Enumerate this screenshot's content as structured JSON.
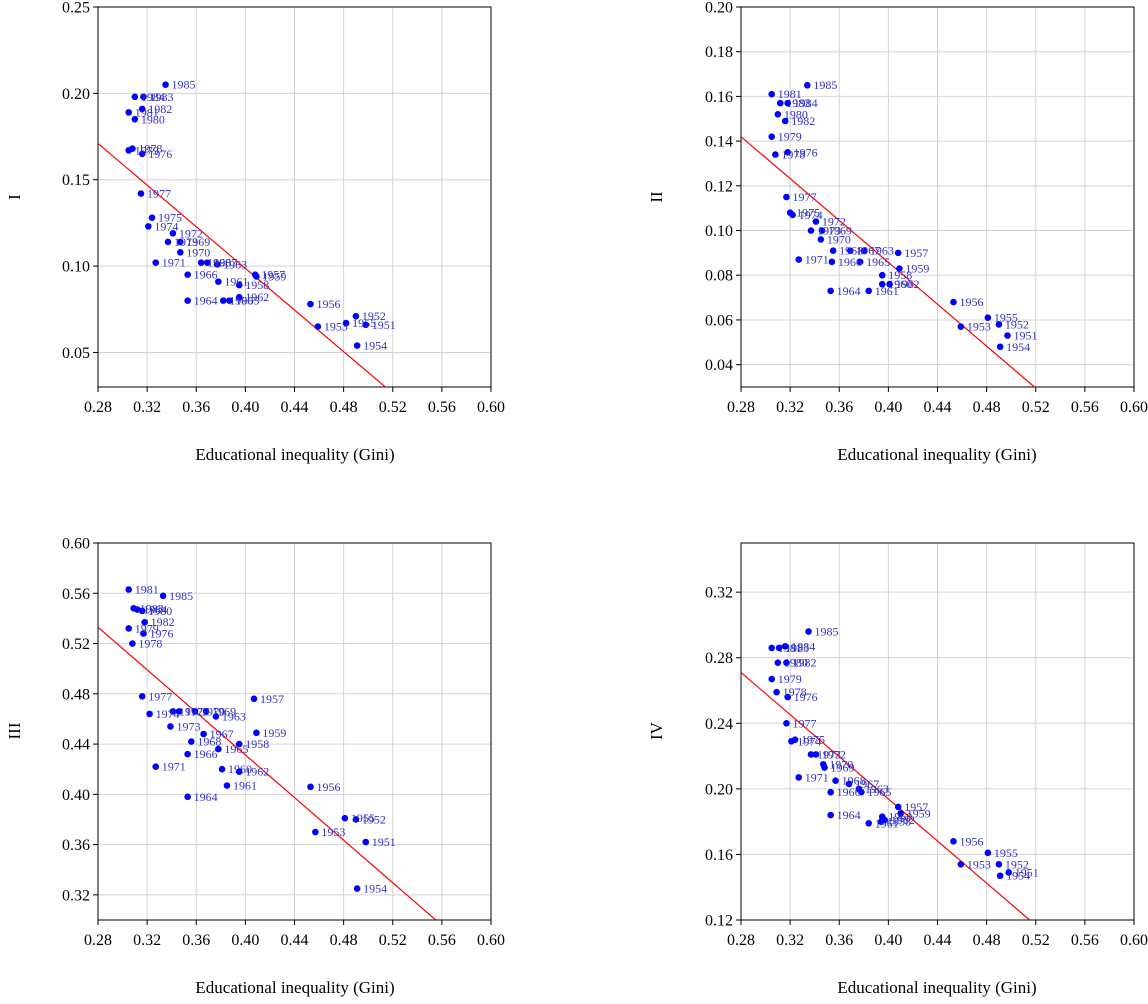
{
  "colors": {
    "points": "#0000ff",
    "labels": "#3232c8",
    "fit_line": "#ff0000",
    "grid": "#d3d3d3"
  },
  "chart_data": [
    {
      "type": "scatter",
      "ylabel": "I",
      "xlabel": "Educational inequality (Gini)",
      "xlim": [
        0.28,
        0.6
      ],
      "ylim": [
        0.03,
        0.25
      ],
      "xticks": [
        "0.28",
        "0.32",
        "0.36",
        "0.40",
        "0.44",
        "0.48",
        "0.52",
        "0.56",
        "0.60"
      ],
      "yticks": [
        "0.05",
        "0.10",
        "0.15",
        "0.20",
        "0.25"
      ],
      "fit_line": {
        "x": [
          0.28,
          0.514
        ],
        "y": [
          0.171,
          0.03
        ]
      },
      "points": [
        {
          "year": "1951",
          "x": 0.498,
          "y": 0.066
        },
        {
          "year": "1952",
          "x": 0.49,
          "y": 0.071
        },
        {
          "year": "1953",
          "x": 0.459,
          "y": 0.065
        },
        {
          "year": "1954",
          "x": 0.491,
          "y": 0.054
        },
        {
          "year": "1955",
          "x": 0.482,
          "y": 0.067
        },
        {
          "year": "1956",
          "x": 0.453,
          "y": 0.078
        },
        {
          "year": "1957",
          "x": 0.408,
          "y": 0.095
        },
        {
          "year": "1958",
          "x": 0.395,
          "y": 0.089
        },
        {
          "year": "1959",
          "x": 0.409,
          "y": 0.094
        },
        {
          "year": "1960",
          "x": 0.382,
          "y": 0.08
        },
        {
          "year": "1961",
          "x": 0.378,
          "y": 0.091
        },
        {
          "year": "1962",
          "x": 0.395,
          "y": 0.082
        },
        {
          "year": "1963",
          "x": 0.377,
          "y": 0.101
        },
        {
          "year": "1964",
          "x": 0.353,
          "y": 0.08
        },
        {
          "year": "1965",
          "x": 0.387,
          "y": 0.08
        },
        {
          "year": "1966",
          "x": 0.353,
          "y": 0.095
        },
        {
          "year": "1967",
          "x": 0.369,
          "y": 0.102
        },
        {
          "year": "1968",
          "x": 0.364,
          "y": 0.102
        },
        {
          "year": "1969",
          "x": 0.347,
          "y": 0.114
        },
        {
          "year": "1970",
          "x": 0.347,
          "y": 0.108
        },
        {
          "year": "1971",
          "x": 0.327,
          "y": 0.102
        },
        {
          "year": "1972",
          "x": 0.341,
          "y": 0.119
        },
        {
          "year": "1973",
          "x": 0.337,
          "y": 0.114
        },
        {
          "year": "1974",
          "x": 0.321,
          "y": 0.123
        },
        {
          "year": "1975",
          "x": 0.324,
          "y": 0.128
        },
        {
          "year": "1976",
          "x": 0.316,
          "y": 0.165
        },
        {
          "year": "1977",
          "x": 0.315,
          "y": 0.142
        },
        {
          "year": "1978",
          "x": 0.308,
          "y": 0.168
        },
        {
          "year": "1979",
          "x": 0.305,
          "y": 0.167
        },
        {
          "year": "1980",
          "x": 0.31,
          "y": 0.185
        },
        {
          "year": "1981",
          "x": 0.305,
          "y": 0.189
        },
        {
          "year": "1982",
          "x": 0.316,
          "y": 0.191
        },
        {
          "year": "1983",
          "x": 0.317,
          "y": 0.198
        },
        {
          "year": "1984",
          "x": 0.31,
          "y": 0.198
        },
        {
          "year": "1985",
          "x": 0.335,
          "y": 0.205
        }
      ]
    },
    {
      "type": "scatter",
      "ylabel": "II",
      "xlabel": "Educational inequality (Gini)",
      "xlim": [
        0.28,
        0.6
      ],
      "ylim": [
        0.03,
        0.2
      ],
      "xticks": [
        "0.28",
        "0.32",
        "0.36",
        "0.40",
        "0.44",
        "0.48",
        "0.52",
        "0.56",
        "0.60"
      ],
      "yticks": [
        "0.04",
        "0.06",
        "0.08",
        "0.10",
        "0.12",
        "0.14",
        "0.16",
        "0.18",
        "0.20"
      ],
      "fit_line": {
        "x": [
          0.28,
          0.519
        ],
        "y": [
          0.142,
          0.03
        ]
      },
      "points": [
        {
          "year": "1951",
          "x": 0.497,
          "y": 0.053
        },
        {
          "year": "1952",
          "x": 0.49,
          "y": 0.058
        },
        {
          "year": "1953",
          "x": 0.459,
          "y": 0.057
        },
        {
          "year": "1954",
          "x": 0.491,
          "y": 0.048
        },
        {
          "year": "1955",
          "x": 0.481,
          "y": 0.061
        },
        {
          "year": "1956",
          "x": 0.453,
          "y": 0.068
        },
        {
          "year": "1957",
          "x": 0.408,
          "y": 0.09
        },
        {
          "year": "1958",
          "x": 0.395,
          "y": 0.08
        },
        {
          "year": "1959",
          "x": 0.409,
          "y": 0.083
        },
        {
          "year": "1960",
          "x": 0.395,
          "y": 0.076
        },
        {
          "year": "1961",
          "x": 0.384,
          "y": 0.073
        },
        {
          "year": "1962",
          "x": 0.401,
          "y": 0.076
        },
        {
          "year": "1963",
          "x": 0.38,
          "y": 0.091
        },
        {
          "year": "1964",
          "x": 0.353,
          "y": 0.073
        },
        {
          "year": "1965",
          "x": 0.377,
          "y": 0.086
        },
        {
          "year": "1966",
          "x": 0.354,
          "y": 0.086
        },
        {
          "year": "1967",
          "x": 0.369,
          "y": 0.091
        },
        {
          "year": "1968",
          "x": 0.355,
          "y": 0.091
        },
        {
          "year": "1969",
          "x": 0.346,
          "y": 0.1
        },
        {
          "year": "1970",
          "x": 0.345,
          "y": 0.096
        },
        {
          "year": "1971",
          "x": 0.327,
          "y": 0.087
        },
        {
          "year": "1972",
          "x": 0.341,
          "y": 0.104
        },
        {
          "year": "1973",
          "x": 0.337,
          "y": 0.1
        },
        {
          "year": "1974",
          "x": 0.322,
          "y": 0.107
        },
        {
          "year": "1975",
          "x": 0.32,
          "y": 0.108
        },
        {
          "year": "1976",
          "x": 0.318,
          "y": 0.135
        },
        {
          "year": "1977",
          "x": 0.317,
          "y": 0.115
        },
        {
          "year": "1978",
          "x": 0.308,
          "y": 0.134
        },
        {
          "year": "1979",
          "x": 0.305,
          "y": 0.142
        },
        {
          "year": "1980",
          "x": 0.31,
          "y": 0.152
        },
        {
          "year": "1981",
          "x": 0.305,
          "y": 0.161
        },
        {
          "year": "1982",
          "x": 0.316,
          "y": 0.149
        },
        {
          "year": "1983",
          "x": 0.312,
          "y": 0.157
        },
        {
          "year": "1984",
          "x": 0.318,
          "y": 0.157
        },
        {
          "year": "1985",
          "x": 0.334,
          "y": 0.165
        }
      ]
    },
    {
      "type": "scatter",
      "ylabel": "III",
      "xlabel": "Educational inequality (Gini)",
      "xlim": [
        0.28,
        0.6
      ],
      "ylim": [
        0.3,
        0.6
      ],
      "xticks": [
        "0.28",
        "0.32",
        "0.36",
        "0.40",
        "0.44",
        "0.48",
        "0.52",
        "0.56",
        "0.60"
      ],
      "yticks": [
        "0.32",
        "0.36",
        "0.40",
        "0.44",
        "0.48",
        "0.52",
        "0.56",
        "0.60"
      ],
      "fit_line": {
        "x": [
          0.28,
          0.555
        ],
        "y": [
          0.533,
          0.3
        ]
      },
      "points": [
        {
          "year": "1951",
          "x": 0.498,
          "y": 0.362
        },
        {
          "year": "1952",
          "x": 0.49,
          "y": 0.38
        },
        {
          "year": "1953",
          "x": 0.457,
          "y": 0.37
        },
        {
          "year": "1954",
          "x": 0.491,
          "y": 0.325
        },
        {
          "year": "1955",
          "x": 0.481,
          "y": 0.381
        },
        {
          "year": "1956",
          "x": 0.453,
          "y": 0.406
        },
        {
          "year": "1957",
          "x": 0.407,
          "y": 0.476
        },
        {
          "year": "1958",
          "x": 0.395,
          "y": 0.44
        },
        {
          "year": "1959",
          "x": 0.409,
          "y": 0.449
        },
        {
          "year": "1960",
          "x": 0.381,
          "y": 0.42
        },
        {
          "year": "1961",
          "x": 0.385,
          "y": 0.407
        },
        {
          "year": "1962",
          "x": 0.395,
          "y": 0.418
        },
        {
          "year": "1963",
          "x": 0.376,
          "y": 0.462
        },
        {
          "year": "1964",
          "x": 0.353,
          "y": 0.398
        },
        {
          "year": "1965",
          "x": 0.378,
          "y": 0.436
        },
        {
          "year": "1966",
          "x": 0.353,
          "y": 0.432
        },
        {
          "year": "1967",
          "x": 0.366,
          "y": 0.448
        },
        {
          "year": "1968",
          "x": 0.356,
          "y": 0.442
        },
        {
          "year": "1969",
          "x": 0.368,
          "y": 0.466
        },
        {
          "year": "1970",
          "x": 0.359,
          "y": 0.466
        },
        {
          "year": "1971",
          "x": 0.327,
          "y": 0.422
        },
        {
          "year": "1972",
          "x": 0.341,
          "y": 0.466
        },
        {
          "year": "1973",
          "x": 0.339,
          "y": 0.454
        },
        {
          "year": "1974",
          "x": 0.322,
          "y": 0.464
        },
        {
          "year": "1975",
          "x": 0.346,
          "y": 0.466
        },
        {
          "year": "1976",
          "x": 0.317,
          "y": 0.528
        },
        {
          "year": "1977",
          "x": 0.316,
          "y": 0.478
        },
        {
          "year": "1978",
          "x": 0.308,
          "y": 0.52
        },
        {
          "year": "1979",
          "x": 0.305,
          "y": 0.532
        },
        {
          "year": "1980",
          "x": 0.316,
          "y": 0.546
        },
        {
          "year": "1981",
          "x": 0.305,
          "y": 0.563
        },
        {
          "year": "1982",
          "x": 0.318,
          "y": 0.537
        },
        {
          "year": "1983",
          "x": 0.309,
          "y": 0.548
        },
        {
          "year": "1984",
          "x": 0.312,
          "y": 0.547
        },
        {
          "year": "1985",
          "x": 0.333,
          "y": 0.558
        }
      ]
    },
    {
      "type": "scatter",
      "ylabel": "IV",
      "xlabel": "Educational inequality (Gini)",
      "xlim": [
        0.28,
        0.6
      ],
      "ylim": [
        0.12,
        0.35
      ],
      "xticks": [
        "0.28",
        "0.32",
        "0.36",
        "0.40",
        "0.44",
        "0.48",
        "0.52",
        "0.56",
        "0.60"
      ],
      "yticks": [
        "0.12",
        "0.16",
        "0.20",
        "0.24",
        "0.28",
        "0.32"
      ],
      "fit_line": {
        "x": [
          0.28,
          0.515
        ],
        "y": [
          0.271,
          0.12
        ]
      },
      "points": [
        {
          "year": "1951",
          "x": 0.498,
          "y": 0.149
        },
        {
          "year": "1952",
          "x": 0.49,
          "y": 0.154
        },
        {
          "year": "1953",
          "x": 0.459,
          "y": 0.154
        },
        {
          "year": "1954",
          "x": 0.491,
          "y": 0.147
        },
        {
          "year": "1955",
          "x": 0.481,
          "y": 0.161
        },
        {
          "year": "1956",
          "x": 0.453,
          "y": 0.168
        },
        {
          "year": "1957",
          "x": 0.408,
          "y": 0.189
        },
        {
          "year": "1958",
          "x": 0.394,
          "y": 0.18
        },
        {
          "year": "1959",
          "x": 0.41,
          "y": 0.185
        },
        {
          "year": "1960",
          "x": 0.395,
          "y": 0.183
        },
        {
          "year": "1961",
          "x": 0.384,
          "y": 0.179
        },
        {
          "year": "1962",
          "x": 0.397,
          "y": 0.181
        },
        {
          "year": "1963",
          "x": 0.376,
          "y": 0.2
        },
        {
          "year": "1964",
          "x": 0.353,
          "y": 0.184
        },
        {
          "year": "1965",
          "x": 0.378,
          "y": 0.198
        },
        {
          "year": "1966",
          "x": 0.353,
          "y": 0.198
        },
        {
          "year": "1967",
          "x": 0.368,
          "y": 0.203
        },
        {
          "year": "1968",
          "x": 0.357,
          "y": 0.205
        },
        {
          "year": "1969",
          "x": 0.348,
          "y": 0.213
        },
        {
          "year": "1970",
          "x": 0.347,
          "y": 0.215
        },
        {
          "year": "1971",
          "x": 0.327,
          "y": 0.207
        },
        {
          "year": "1972",
          "x": 0.341,
          "y": 0.221
        },
        {
          "year": "1973",
          "x": 0.337,
          "y": 0.221
        },
        {
          "year": "1974",
          "x": 0.321,
          "y": 0.229
        },
        {
          "year": "1975",
          "x": 0.324,
          "y": 0.23
        },
        {
          "year": "1976",
          "x": 0.318,
          "y": 0.256
        },
        {
          "year": "1977",
          "x": 0.317,
          "y": 0.24
        },
        {
          "year": "1978",
          "x": 0.309,
          "y": 0.259
        },
        {
          "year": "1979",
          "x": 0.305,
          "y": 0.267
        },
        {
          "year": "1980",
          "x": 0.31,
          "y": 0.277
        },
        {
          "year": "1981",
          "x": 0.305,
          "y": 0.286
        },
        {
          "year": "1982",
          "x": 0.317,
          "y": 0.277
        },
        {
          "year": "1983",
          "x": 0.311,
          "y": 0.286
        },
        {
          "year": "1984",
          "x": 0.316,
          "y": 0.287
        },
        {
          "year": "1985",
          "x": 0.335,
          "y": 0.296
        }
      ]
    }
  ]
}
